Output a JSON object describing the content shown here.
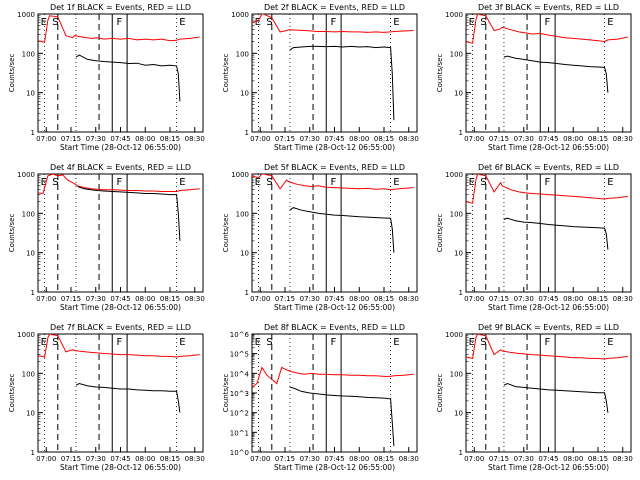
{
  "figure": {
    "start_time_label": "Start Time (28-Oct-12 06:55:00)",
    "ylabel": "Counts/sec",
    "colors": {
      "events": "#000000",
      "lld": "#ff0000",
      "background": "#ffffff",
      "axes": "#000000"
    }
  },
  "chart_data": [
    {
      "type": "line",
      "title": "Det 1f BLACK = Events, RED = LLD",
      "x_ticks": [
        "07:00",
        "07:15",
        "07:30",
        "07:45",
        "08:00",
        "08:15",
        "08:30"
      ],
      "yscale": "log",
      "ylim": [
        1,
        1000
      ],
      "y_ticks": [
        "1",
        "10",
        "100",
        "1000"
      ],
      "markers": [
        "E",
        "S",
        "F",
        "E"
      ],
      "series": [
        {
          "color": "#ff0000",
          "x": [
            0,
            4,
            6,
            7,
            12,
            17,
            21,
            22,
            27,
            32,
            36,
            40,
            45,
            50,
            55,
            60,
            65,
            70,
            75,
            80,
            84,
            86,
            92,
            98
          ],
          "y": [
            210,
            190,
            700,
            900,
            850,
            280,
            250,
            280,
            260,
            240,
            250,
            230,
            240,
            230,
            240,
            220,
            230,
            220,
            230,
            210,
            215,
            230,
            240,
            260
          ]
        },
        {
          "color": "#000000",
          "x": [
            23,
            25,
            30,
            35,
            40,
            45,
            50,
            55,
            60,
            65,
            70,
            75,
            80,
            84,
            85,
            86
          ],
          "y": [
            80,
            90,
            70,
            65,
            62,
            60,
            58,
            55,
            56,
            50,
            52,
            48,
            50,
            48,
            30,
            6
          ]
        }
      ]
    },
    {
      "type": "line",
      "title": "Det 2f BLACK = Events, RED = LLD",
      "x_ticks": [
        "07:00",
        "07:15",
        "07:30",
        "07:45",
        "08:00",
        "08:15",
        "08:30"
      ],
      "yscale": "log",
      "ylim": [
        1,
        1000
      ],
      "y_ticks": [
        "1",
        "10",
        "100",
        "1000"
      ],
      "markers": [
        "E",
        "S",
        "F",
        "E"
      ],
      "series": [
        {
          "color": "#ff0000",
          "x": [
            0,
            4,
            6,
            7,
            12,
            17,
            21,
            22,
            27,
            32,
            36,
            40,
            45,
            50,
            55,
            60,
            65,
            70,
            75,
            80,
            84,
            86,
            92,
            98
          ],
          "y": [
            600,
            700,
            1000,
            1000,
            800,
            350,
            380,
            400,
            390,
            380,
            370,
            360,
            360,
            350,
            360,
            350,
            350,
            340,
            350,
            340,
            350,
            360,
            370,
            380
          ]
        },
        {
          "color": "#000000",
          "x": [
            23,
            25,
            30,
            35,
            40,
            45,
            50,
            55,
            60,
            65,
            70,
            75,
            80,
            84,
            85,
            86
          ],
          "y": [
            120,
            140,
            145,
            150,
            150,
            148,
            150,
            145,
            150,
            145,
            148,
            140,
            145,
            140,
            30,
            2
          ]
        }
      ]
    },
    {
      "type": "line",
      "title": "Det 3f BLACK = Events, RED = LLD",
      "x_ticks": [
        "07:00",
        "07:15",
        "07:30",
        "07:45",
        "08:00",
        "08:15",
        "08:30"
      ],
      "yscale": "log",
      "ylim": [
        1,
        1000
      ],
      "y_ticks": [
        "1",
        "10",
        "100",
        "1000"
      ],
      "markers": [
        "E",
        "S",
        "F",
        "E"
      ],
      "series": [
        {
          "color": "#ff0000",
          "x": [
            0,
            4,
            6,
            7,
            12,
            17,
            21,
            22,
            27,
            32,
            36,
            40,
            45,
            50,
            55,
            60,
            65,
            70,
            75,
            80,
            84,
            86,
            92,
            98
          ],
          "y": [
            200,
            180,
            700,
            1000,
            900,
            380,
            420,
            460,
            400,
            350,
            330,
            310,
            320,
            290,
            270,
            250,
            240,
            230,
            220,
            210,
            200,
            220,
            230,
            260
          ]
        },
        {
          "color": "#000000",
          "x": [
            23,
            25,
            30,
            35,
            40,
            45,
            50,
            55,
            60,
            65,
            70,
            75,
            80,
            84,
            85,
            86
          ],
          "y": [
            80,
            85,
            75,
            70,
            65,
            60,
            58,
            55,
            52,
            50,
            48,
            46,
            45,
            44,
            30,
            10
          ]
        }
      ]
    },
    {
      "type": "line",
      "title": "Det 4f BLACK = Events, RED = LLD",
      "x_ticks": [
        "07:00",
        "07:15",
        "07:30",
        "07:45",
        "08:00",
        "08:15",
        "08:30"
      ],
      "yscale": "log",
      "ylim": [
        1,
        1000
      ],
      "y_ticks": [
        "1",
        "10",
        "100",
        "1000"
      ],
      "markers": [
        "E",
        "S",
        "F",
        "E"
      ],
      "series": [
        {
          "color": "#ff0000",
          "x": [
            0,
            3,
            6,
            9,
            12,
            15,
            18,
            21,
            24,
            28,
            32,
            36,
            40,
            45,
            50,
            55,
            60,
            65,
            70,
            75,
            80,
            84,
            86,
            92,
            98
          ],
          "y": [
            330,
            320,
            900,
            1000,
            900,
            950,
            700,
            600,
            500,
            450,
            420,
            410,
            400,
            400,
            390,
            380,
            380,
            370,
            370,
            360,
            360,
            360,
            380,
            400,
            420
          ]
        },
        {
          "color": "#000000",
          "x": [
            24,
            28,
            32,
            36,
            40,
            45,
            50,
            55,
            60,
            65,
            70,
            75,
            80,
            84,
            85,
            86
          ],
          "y": [
            480,
            420,
            400,
            380,
            370,
            360,
            350,
            340,
            330,
            320,
            320,
            310,
            300,
            300,
            100,
            20
          ]
        }
      ]
    },
    {
      "type": "line",
      "title": "Det 5f BLACK = Events, RED = LLD",
      "x_ticks": [
        "07:00",
        "07:15",
        "07:30",
        "07:45",
        "08:00",
        "08:15",
        "08:30"
      ],
      "yscale": "log",
      "ylim": [
        1,
        1000
      ],
      "y_ticks": [
        "1",
        "10",
        "100",
        "1000"
      ],
      "markers": [
        "E",
        "S",
        "F",
        "E"
      ],
      "series": [
        {
          "color": "#ff0000",
          "x": [
            0,
            4,
            6,
            7,
            12,
            17,
            21,
            22,
            27,
            32,
            36,
            40,
            45,
            50,
            55,
            60,
            65,
            70,
            75,
            80,
            84,
            86,
            92,
            98
          ],
          "y": [
            900,
            800,
            1000,
            1000,
            900,
            420,
            700,
            650,
            550,
            500,
            480,
            500,
            460,
            450,
            440,
            430,
            420,
            430,
            410,
            420,
            400,
            410,
            430,
            450
          ]
        },
        {
          "color": "#000000",
          "x": [
            23,
            25,
            30,
            35,
            40,
            45,
            50,
            55,
            60,
            65,
            70,
            75,
            80,
            84,
            85,
            86
          ],
          "y": [
            120,
            140,
            120,
            110,
            100,
            95,
            90,
            88,
            85,
            82,
            80,
            78,
            76,
            75,
            40,
            10
          ]
        }
      ]
    },
    {
      "type": "line",
      "title": "Det 6f BLACK = Events, RED = LLD",
      "x_ticks": [
        "07:00",
        "07:15",
        "07:30",
        "07:45",
        "08:00",
        "08:15",
        "08:30"
      ],
      "yscale": "log",
      "ylim": [
        1,
        1000
      ],
      "y_ticks": [
        "1",
        "10",
        "100",
        "1000"
      ],
      "markers": [
        "E",
        "S",
        "F",
        "E"
      ],
      "series": [
        {
          "color": "#ff0000",
          "x": [
            0,
            4,
            6,
            7,
            12,
            17,
            21,
            22,
            27,
            32,
            36,
            40,
            45,
            50,
            55,
            60,
            65,
            70,
            75,
            80,
            84,
            86,
            92,
            98
          ],
          "y": [
            200,
            180,
            700,
            1000,
            900,
            350,
            600,
            500,
            400,
            350,
            330,
            320,
            310,
            300,
            290,
            280,
            270,
            260,
            250,
            240,
            230,
            240,
            250,
            270
          ]
        },
        {
          "color": "#000000",
          "x": [
            23,
            25,
            30,
            35,
            40,
            45,
            50,
            55,
            60,
            65,
            70,
            75,
            80,
            84,
            85,
            86
          ],
          "y": [
            70,
            75,
            65,
            60,
            58,
            55,
            52,
            50,
            48,
            46,
            45,
            44,
            43,
            42,
            30,
            12
          ]
        }
      ]
    },
    {
      "type": "line",
      "title": "Det 7f BLACK = Events, RED = LLD",
      "x_ticks": [
        "07:00",
        "07:15",
        "07:30",
        "07:45",
        "08:00",
        "08:15",
        "08:30"
      ],
      "yscale": "log",
      "ylim": [
        1,
        1000
      ],
      "y_ticks": [
        "1",
        "10",
        "100",
        "1000"
      ],
      "markers": [
        "E",
        "S",
        "F",
        "E"
      ],
      "series": [
        {
          "color": "#ff0000",
          "x": [
            0,
            4,
            6,
            7,
            12,
            17,
            21,
            22,
            27,
            32,
            36,
            40,
            45,
            50,
            55,
            60,
            65,
            70,
            75,
            80,
            84,
            86,
            92,
            98
          ],
          "y": [
            280,
            260,
            800,
            1000,
            900,
            350,
            400,
            380,
            360,
            340,
            330,
            320,
            310,
            300,
            300,
            290,
            280,
            280,
            270,
            270,
            260,
            270,
            280,
            300
          ]
        },
        {
          "color": "#000000",
          "x": [
            23,
            25,
            30,
            35,
            40,
            45,
            50,
            55,
            60,
            65,
            70,
            75,
            80,
            84,
            85,
            86
          ],
          "y": [
            50,
            55,
            48,
            45,
            44,
            42,
            40,
            40,
            38,
            37,
            36,
            36,
            35,
            35,
            20,
            10
          ]
        }
      ]
    },
    {
      "type": "line",
      "title": "Det 8f BLACK = Events, RED = LLD",
      "x_ticks": [
        "07:00",
        "07:15",
        "07:30",
        "07:45",
        "08:00",
        "08:15",
        "08:30"
      ],
      "yscale": "log",
      "ylim": [
        1,
        1000000
      ],
      "y_ticks": [
        "10^0",
        "10^1",
        "10^2",
        "10^3",
        "10^4",
        "10^5",
        "10^6"
      ],
      "markers": [
        "E",
        "S",
        "F",
        "E"
      ],
      "series": [
        {
          "color": "#ff0000",
          "x": [
            0,
            3,
            6,
            9,
            12,
            15,
            18,
            21,
            24,
            28,
            32,
            36,
            40,
            45,
            50,
            55,
            60,
            65,
            70,
            75,
            80,
            84,
            86,
            92,
            98
          ],
          "y": [
            2000,
            3000,
            20000,
            8000,
            5000,
            3000,
            20000,
            15000,
            12000,
            10000,
            9000,
            10000,
            9000,
            9000,
            8500,
            8500,
            8000,
            8000,
            7500,
            7500,
            7000,
            7000,
            7500,
            8000,
            9000
          ]
        },
        {
          "color": "#000000",
          "x": [
            23,
            25,
            30,
            35,
            40,
            45,
            50,
            55,
            60,
            65,
            70,
            75,
            80,
            84,
            85,
            86
          ],
          "y": [
            2000,
            1800,
            1200,
            1000,
            900,
            800,
            750,
            700,
            680,
            650,
            600,
            580,
            550,
            500,
            30,
            2
          ]
        }
      ]
    },
    {
      "type": "line",
      "title": "Det 9f BLACK = Events, RED = LLD",
      "x_ticks": [
        "07:00",
        "07:15",
        "07:30",
        "07:45",
        "08:00",
        "08:15",
        "08:30"
      ],
      "yscale": "log",
      "ylim": [
        1,
        1000
      ],
      "y_ticks": [
        "1",
        "10",
        "100",
        "1000"
      ],
      "markers": [
        "E",
        "S",
        "F",
        "E"
      ],
      "series": [
        {
          "color": "#ff0000",
          "x": [
            0,
            4,
            6,
            7,
            12,
            17,
            21,
            22,
            27,
            32,
            36,
            40,
            45,
            50,
            55,
            60,
            65,
            70,
            75,
            80,
            84,
            86,
            92,
            98
          ],
          "y": [
            260,
            240,
            800,
            1000,
            900,
            300,
            400,
            370,
            340,
            320,
            310,
            300,
            290,
            280,
            270,
            260,
            250,
            250,
            240,
            240,
            230,
            240,
            250,
            270
          ]
        },
        {
          "color": "#000000",
          "x": [
            23,
            25,
            30,
            35,
            40,
            45,
            50,
            55,
            60,
            65,
            70,
            75,
            80,
            84,
            85,
            86
          ],
          "y": [
            50,
            55,
            46,
            44,
            42,
            40,
            38,
            37,
            36,
            35,
            34,
            33,
            32,
            32,
            20,
            10
          ]
        }
      ]
    }
  ]
}
